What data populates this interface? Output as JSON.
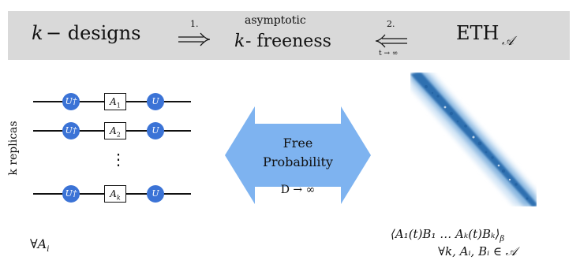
{
  "banner": {
    "k_var": "k",
    "designs_text": "− designs",
    "arrow1_label": "1.",
    "asym_label": "asymptotic",
    "freeness_text": "- freeness",
    "arrow2_label": "2.",
    "limit_label": "t → ∞",
    "eth_label": "ETH",
    "eth_sub": "𝒜"
  },
  "circuit": {
    "replica_label": "k replicas",
    "udag": "U†",
    "u": "U",
    "boxes": [
      "A",
      "A",
      "A"
    ],
    "box_subs": [
      "1",
      "2",
      "k"
    ],
    "dots": "⋮",
    "forall_label": "∀A",
    "forall_sub": "i"
  },
  "middle": {
    "line1": "Free",
    "line2": "Probability",
    "limit": "D → ∞"
  },
  "right": {
    "correlator": "⟨A₁(t)B₁ … Aₖ(t)Bₖ⟩",
    "correlator_sub": "β",
    "condition": "∀k, Aᵢ, Bᵢ ∈ 𝒜"
  },
  "colors": {
    "banner_bg": "#d9d9d9",
    "gate_blue": "#3b73d6",
    "arrow_blue": "#7eb3f0",
    "matrix_blue": "#2f6fb0"
  }
}
